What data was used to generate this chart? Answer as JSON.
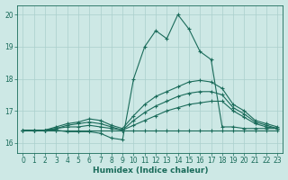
{
  "xlabel": "Humidex (Indice chaleur)",
  "ylabel": "",
  "xlim": [
    -0.5,
    23.5
  ],
  "ylim": [
    15.7,
    20.3
  ],
  "xticks": [
    0,
    1,
    2,
    3,
    4,
    5,
    6,
    7,
    8,
    9,
    10,
    11,
    12,
    13,
    14,
    15,
    16,
    17,
    18,
    19,
    20,
    21,
    22,
    23
  ],
  "yticks": [
    16,
    17,
    18,
    19,
    20
  ],
  "background_color": "#cde8e5",
  "grid_color": "#aacfcc",
  "line_color": "#1a6b5a",
  "lines": [
    {
      "x": [
        0,
        1,
        2,
        3,
        4,
        5,
        6,
        7,
        8,
        9,
        10,
        11,
        12,
        13,
        14,
        15,
        16,
        17,
        18,
        19,
        20,
        21,
        22,
        23
      ],
      "y": [
        16.4,
        16.4,
        16.4,
        16.4,
        16.35,
        16.35,
        16.35,
        16.3,
        16.15,
        16.1,
        18.0,
        19.0,
        19.5,
        19.25,
        20.0,
        19.55,
        18.85,
        18.6,
        16.5,
        16.5,
        16.45,
        16.45,
        16.45,
        16.45
      ]
    },
    {
      "x": [
        0,
        1,
        2,
        3,
        4,
        5,
        6,
        7,
        8,
        9,
        10,
        11,
        12,
        13,
        14,
        15,
        16,
        17,
        18,
        19,
        20,
        21,
        22,
        23
      ],
      "y": [
        16.4,
        16.4,
        16.4,
        16.4,
        16.4,
        16.4,
        16.4,
        16.4,
        16.4,
        16.4,
        16.4,
        16.4,
        16.4,
        16.4,
        16.4,
        16.4,
        16.4,
        16.4,
        16.4,
        16.4,
        16.4,
        16.4,
        16.4,
        16.4
      ]
    },
    {
      "x": [
        0,
        1,
        2,
        3,
        4,
        5,
        6,
        7,
        8,
        9,
        10,
        11,
        12,
        13,
        14,
        15,
        16,
        17,
        18,
        19,
        20,
        21,
        22,
        23
      ],
      "y": [
        16.4,
        16.4,
        16.4,
        16.45,
        16.5,
        16.5,
        16.55,
        16.5,
        16.45,
        16.4,
        16.55,
        16.7,
        16.85,
        17.0,
        17.1,
        17.2,
        17.25,
        17.3,
        17.3,
        17.0,
        16.8,
        16.6,
        16.5,
        16.45
      ]
    },
    {
      "x": [
        0,
        1,
        2,
        3,
        4,
        5,
        6,
        7,
        8,
        9,
        10,
        11,
        12,
        13,
        14,
        15,
        16,
        17,
        18,
        19,
        20,
        21,
        22,
        23
      ],
      "y": [
        16.4,
        16.4,
        16.4,
        16.45,
        16.55,
        16.6,
        16.65,
        16.6,
        16.5,
        16.4,
        16.7,
        16.95,
        17.15,
        17.3,
        17.45,
        17.55,
        17.6,
        17.6,
        17.5,
        17.1,
        16.9,
        16.65,
        16.55,
        16.45
      ]
    },
    {
      "x": [
        0,
        1,
        2,
        3,
        4,
        5,
        6,
        7,
        8,
        9,
        10,
        11,
        12,
        13,
        14,
        15,
        16,
        17,
        18,
        19,
        20,
        21,
        22,
        23
      ],
      "y": [
        16.4,
        16.4,
        16.4,
        16.5,
        16.6,
        16.65,
        16.75,
        16.7,
        16.55,
        16.45,
        16.85,
        17.2,
        17.45,
        17.6,
        17.75,
        17.9,
        17.95,
        17.9,
        17.7,
        17.2,
        17.0,
        16.7,
        16.6,
        16.5
      ]
    }
  ]
}
